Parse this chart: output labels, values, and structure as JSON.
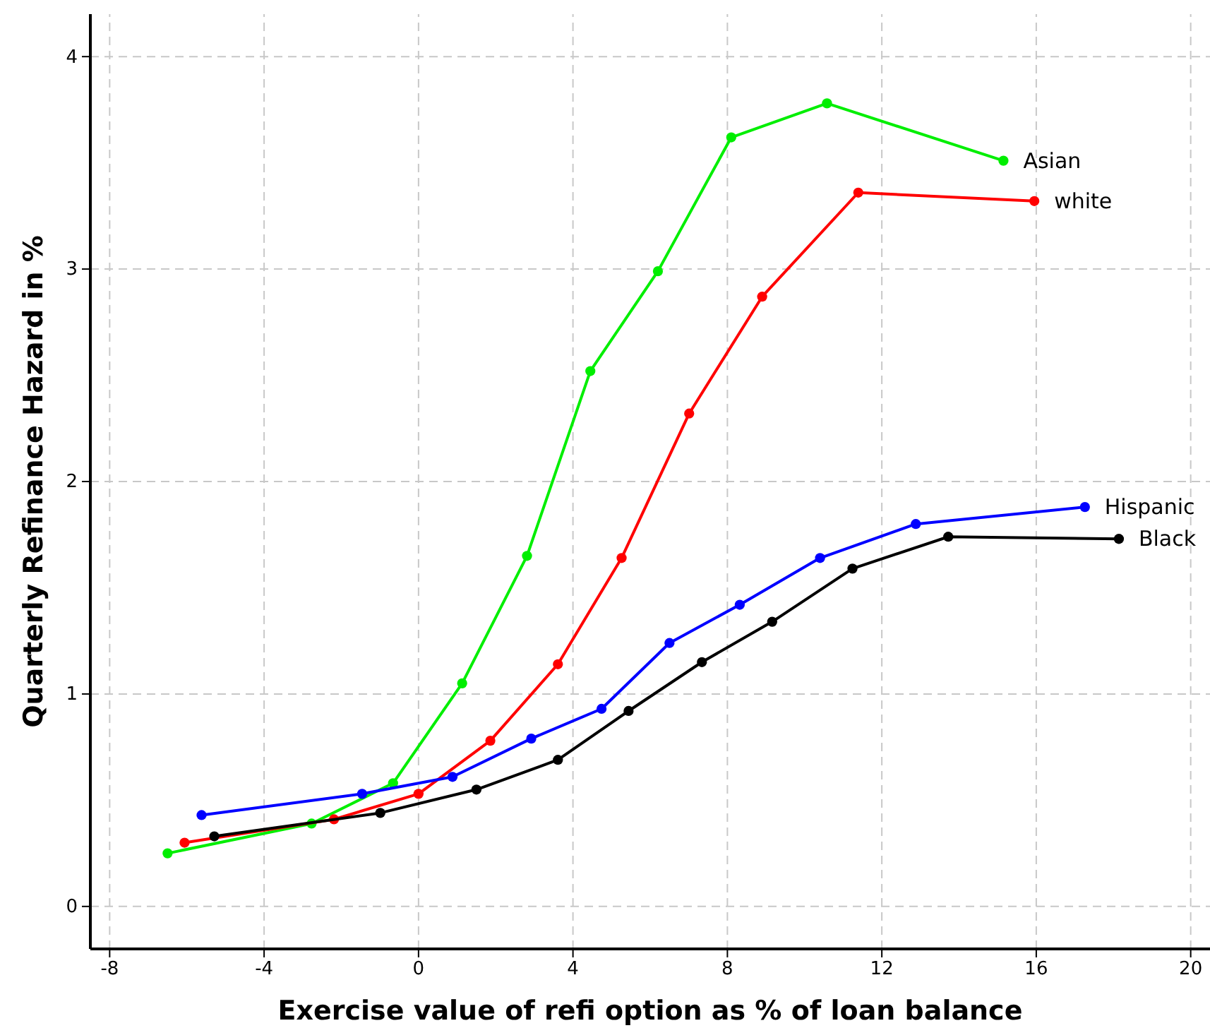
{
  "chart_data": {
    "type": "line",
    "xlabel": "Exercise value of refi option as % of loan balance",
    "ylabel": "Quarterly Refinance Hazard in %",
    "xlim": [
      -8.5,
      20.5
    ],
    "ylim": [
      -0.2,
      4.2
    ],
    "xticks": [
      -8,
      -4,
      0,
      4,
      8,
      12,
      16,
      20
    ],
    "yticks": [
      0,
      1,
      2,
      3,
      4
    ],
    "grid": true,
    "marker": "circle",
    "line_style": "solid",
    "legend": false,
    "series": [
      {
        "name": "Asian",
        "color": "#00ee00",
        "x": [
          -6.5,
          -2.77,
          -0.66,
          1.13,
          2.81,
          4.45,
          6.2,
          8.1,
          10.58,
          15.15
        ],
        "values": [
          0.25,
          0.39,
          0.58,
          1.05,
          1.65,
          2.52,
          2.99,
          3.62,
          3.78,
          3.51
        ]
      },
      {
        "name": "white",
        "color": "#ff0000",
        "x": [
          -6.06,
          -2.19,
          0,
          1.86,
          3.61,
          5.26,
          7.01,
          8.9,
          11.39,
          15.95
        ],
        "values": [
          0.3,
          0.41,
          0.53,
          0.78,
          1.14,
          1.64,
          2.32,
          2.87,
          3.36,
          3.32
        ]
      },
      {
        "name": "Hispanic",
        "color": "#0000ff",
        "x": [
          -5.62,
          -1.46,
          0.88,
          2.92,
          4.74,
          6.5,
          8.32,
          10.4,
          12.88,
          17.26
        ],
        "values": [
          0.43,
          0.53,
          0.61,
          0.79,
          0.93,
          1.24,
          1.42,
          1.64,
          1.8,
          1.88
        ]
      },
      {
        "name": "Black",
        "color": "#000000",
        "x": [
          -5.29,
          -0.99,
          1.5,
          3.61,
          5.44,
          7.34,
          9.16,
          11.24,
          13.72,
          18.14
        ],
        "values": [
          0.33,
          0.44,
          0.55,
          0.69,
          0.92,
          1.15,
          1.34,
          1.59,
          1.74,
          1.73
        ]
      }
    ]
  }
}
